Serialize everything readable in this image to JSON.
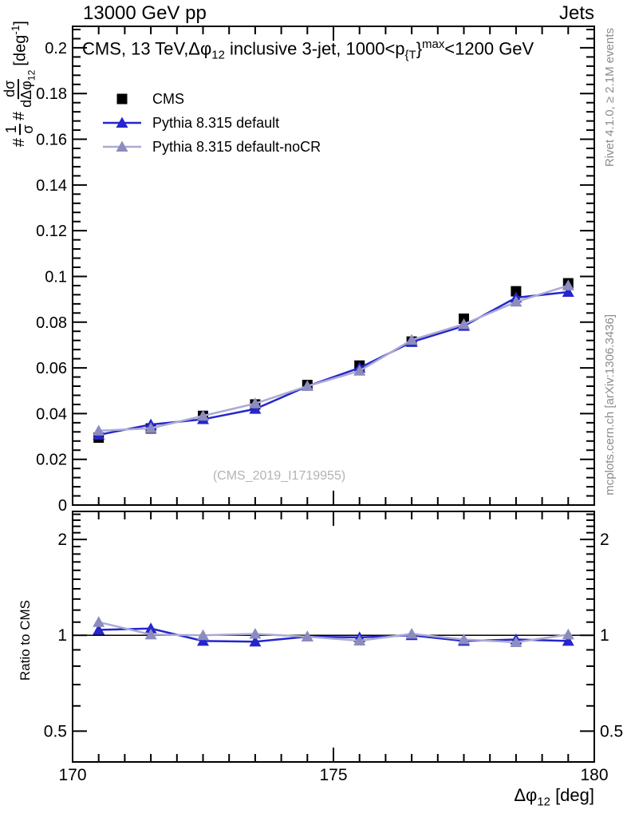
{
  "header": {
    "beam": "13000 GeV pp",
    "analysis_group": "Jets"
  },
  "side_notes": {
    "right_top": "Rivet 4.1.0, ≥ 2.1M events",
    "right_bottom": "mcplots.cern.ch [arXiv:1306.3436]"
  },
  "watermark": "(CMS_2019_I1719955)",
  "main_panel": {
    "title": {
      "part1": "CMS, 13 TeV,Δφ",
      "sub1": "12",
      "part2": " inclusive 3-jet, 1000<p",
      "sub2": "{T",
      "part3": "}",
      "sup1": "max",
      "part4": "<1200 GeV"
    },
    "ylabel": {
      "hash1": "#",
      "frac1_num": "1",
      "frac1_den": "σ",
      "hash2": "#",
      "frac2_num": "dσ",
      "frac2_den": "dΔφ",
      "frac2_den_sub": "12",
      "unit_pre": "[deg",
      "unit_sup": "-1",
      "unit_post": "]"
    }
  },
  "ratio_panel": {
    "ylabel": "Ratio to CMS"
  },
  "xaxis": {
    "label_main": "Δφ",
    "label_sub": "12",
    "label_unit": " [deg]"
  },
  "chart_data": {
    "type": "line",
    "title": "CMS, 13 TeV, Δφ12 inclusive 3-jet, 1000<p_T^max<1200 GeV",
    "xlabel": "Δφ12 [deg]",
    "ylabel": "1/σ dσ/dΔφ12 [deg^-1]",
    "legend_position": "top-left",
    "grid": false,
    "xlim": [
      170,
      180
    ],
    "main_ylim": [
      0,
      0.2094
    ],
    "xticks": {
      "major": [
        170,
        175,
        180
      ],
      "labels": [
        "170",
        "175",
        "180"
      ],
      "minor_step": 0.5
    },
    "main_yticks": {
      "values": [
        0,
        0.02,
        0.04,
        0.06,
        0.08,
        0.1,
        0.12,
        0.14,
        0.16,
        0.18,
        0.2
      ],
      "labels": [
        "0",
        "0.02",
        "0.04",
        "0.06",
        "0.08",
        "0.1",
        "0.12",
        "0.14",
        "0.16",
        "0.18",
        "0.2"
      ],
      "minor_step": 0.004
    },
    "x": [
      170.5,
      171.5,
      172.5,
      173.5,
      174.5,
      175.5,
      176.5,
      177.5,
      178.5,
      179.5
    ],
    "series": [
      {
        "name": "CMS",
        "marker": "square",
        "color": "#000000",
        "line": false,
        "values": [
          0.0295,
          0.0335,
          0.039,
          0.044,
          0.0525,
          0.061,
          0.0715,
          0.0815,
          0.0935,
          0.097
        ]
      },
      {
        "name": "Pythia 8.315 default",
        "marker": "triangle",
        "color": "#2626cc",
        "line": true,
        "line_color": "#2626cc",
        "values": [
          0.0307,
          0.0352,
          0.0375,
          0.042,
          0.052,
          0.06,
          0.0713,
          0.0783,
          0.0907,
          0.0932
        ]
      },
      {
        "name": "Pythia 8.315 default-noCR",
        "marker": "triangle",
        "color": "#8c8cbe",
        "line": true,
        "line_color": "#abaad4",
        "values": [
          0.0325,
          0.0336,
          0.039,
          0.0444,
          0.052,
          0.0587,
          0.0722,
          0.0791,
          0.0889,
          0.096
        ]
      }
    ],
    "ratio": {
      "ylabel": "Ratio to CMS",
      "yscale": "log",
      "ylim": [
        0.4,
        2.45
      ],
      "yticks": {
        "values": [
          0.5,
          1,
          2
        ],
        "labels": [
          "0.5",
          "1",
          "2"
        ],
        "minor": [
          0.6,
          0.7,
          0.8,
          0.9,
          1.1,
          1.2,
          1.3,
          1.4,
          1.5,
          1.6,
          1.7,
          1.8,
          1.9,
          2.1,
          2.2,
          2.3,
          2.4
        ]
      },
      "baseline": 1,
      "series": [
        {
          "name": "Pythia 8.315 default",
          "values": [
            1.04,
            1.05,
            0.96,
            0.955,
            0.99,
            0.985,
            1.0,
            0.96,
            0.97,
            0.96
          ]
        },
        {
          "name": "Pythia 8.315 default-noCR",
          "values": [
            1.1,
            1.005,
            1.0,
            1.01,
            0.99,
            0.962,
            1.01,
            0.97,
            0.951,
            1.005
          ]
        }
      ]
    }
  }
}
